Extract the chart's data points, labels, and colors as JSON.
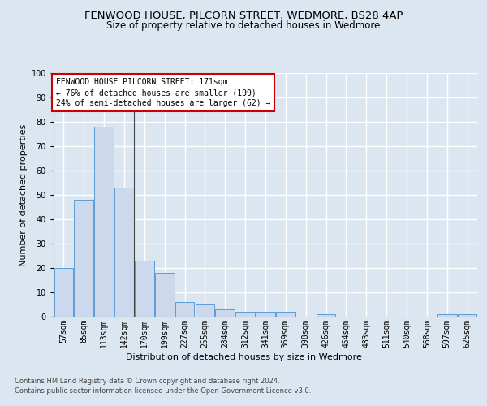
{
  "title": "FENWOOD HOUSE, PILCORN STREET, WEDMORE, BS28 4AP",
  "subtitle": "Size of property relative to detached houses in Wedmore",
  "xlabel": "Distribution of detached houses by size in Wedmore",
  "ylabel": "Number of detached properties",
  "categories": [
    "57sqm",
    "85sqm",
    "113sqm",
    "142sqm",
    "170sqm",
    "199sqm",
    "227sqm",
    "255sqm",
    "284sqm",
    "312sqm",
    "341sqm",
    "369sqm",
    "398sqm",
    "426sqm",
    "454sqm",
    "483sqm",
    "511sqm",
    "540sqm",
    "568sqm",
    "597sqm",
    "625sqm"
  ],
  "values": [
    20,
    48,
    78,
    53,
    23,
    18,
    6,
    5,
    3,
    2,
    2,
    2,
    0,
    1,
    0,
    0,
    0,
    0,
    0,
    1,
    1
  ],
  "bar_color": "#ccd9ed",
  "bar_edge_color": "#5b9bd5",
  "fig_bg_color": "#dce6f1",
  "plot_bg_color": "#dce6f1",
  "grid_color": "#ffffff",
  "annotation_text": "FENWOOD HOUSE PILCORN STREET: 171sqm\n← 76% of detached houses are smaller (199)\n24% of semi-detached houses are larger (62) →",
  "annotation_box_color": "#ffffff",
  "annotation_border_color": "#cc0000",
  "ylim": [
    0,
    100
  ],
  "yticks": [
    0,
    10,
    20,
    30,
    40,
    50,
    60,
    70,
    80,
    90,
    100
  ],
  "footer_line1": "Contains HM Land Registry data © Crown copyright and database right 2024.",
  "footer_line2": "Contains public sector information licensed under the Open Government Licence v3.0.",
  "title_fontsize": 9.5,
  "subtitle_fontsize": 8.5,
  "ylabel_fontsize": 8,
  "xlabel_fontsize": 8,
  "tick_fontsize": 7,
  "annotation_fontsize": 7,
  "footer_fontsize": 6
}
